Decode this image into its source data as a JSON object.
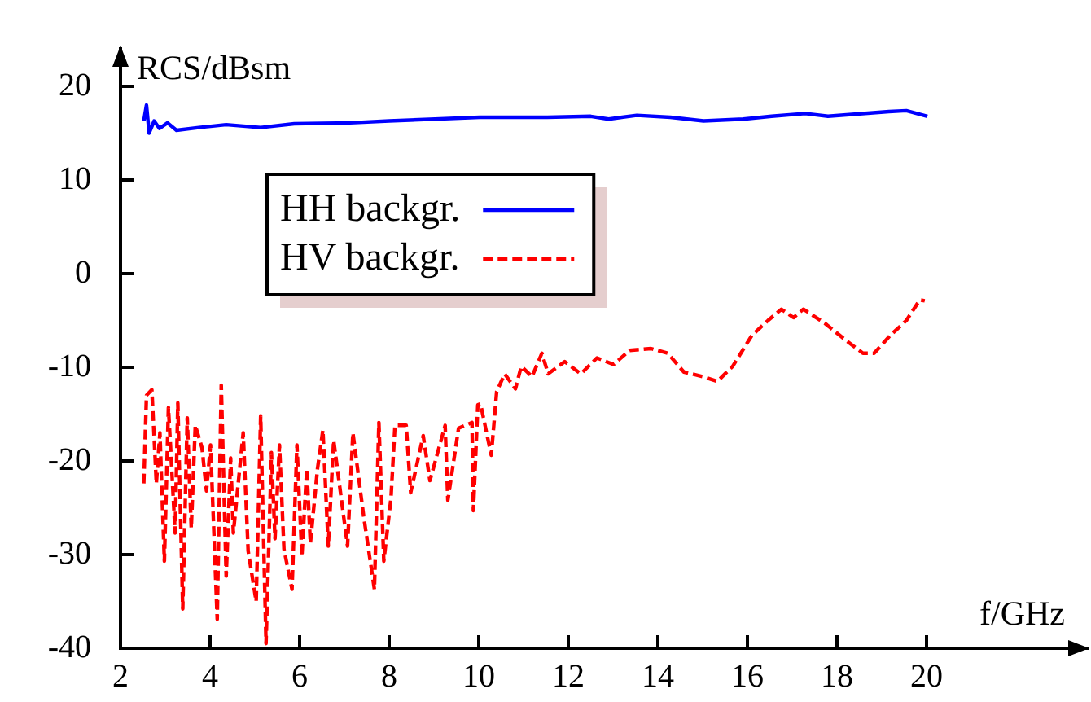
{
  "chart_data": {
    "type": "line",
    "xlabel": "f/GHz",
    "ylabel": "RCS/dBsm",
    "xlim": [
      2,
      23.6
    ],
    "ylim": [
      -40,
      24
    ],
    "xticks": [
      2,
      4,
      6,
      8,
      10,
      12,
      14,
      16,
      18,
      20
    ],
    "yticks": [
      -40,
      -30,
      -20,
      -10,
      0,
      10,
      20
    ],
    "grid": false,
    "legend": "top left",
    "marker": "none",
    "series": [
      {
        "name": "HH backgr.",
        "color": "#0000ff",
        "line_style": "solid",
        "x": [
          2.52,
          2.58,
          2.64,
          2.75,
          2.87,
          3.05,
          3.25,
          3.75,
          4.36,
          5.13,
          5.88,
          7.13,
          8.0,
          9.02,
          10.02,
          11.53,
          12.5,
          12.9,
          13.53,
          14.28,
          15.02,
          15.91,
          16.54,
          17.29,
          17.8,
          19.16,
          19.55,
          20.02
        ],
        "values": [
          16.3,
          18.0,
          15.0,
          16.3,
          15.5,
          16.1,
          15.3,
          15.6,
          15.9,
          15.6,
          16.0,
          16.1,
          16.3,
          16.5,
          16.7,
          16.7,
          16.8,
          16.5,
          16.9,
          16.7,
          16.3,
          16.5,
          16.8,
          17.1,
          16.8,
          17.3,
          17.4,
          16.8
        ]
      },
      {
        "name": "HV backgr.",
        "color": "#ff0000",
        "line_style": "dashed",
        "x": [
          2.52,
          2.58,
          2.7,
          2.8,
          2.88,
          2.98,
          3.07,
          3.22,
          3.28,
          3.39,
          3.49,
          3.58,
          3.67,
          3.82,
          3.92,
          4.01,
          4.16,
          4.25,
          4.36,
          4.46,
          4.52,
          4.74,
          4.85,
          5.03,
          5.13,
          5.25,
          5.37,
          5.45,
          5.55,
          5.65,
          5.83,
          5.94,
          6.05,
          6.16,
          6.24,
          6.4,
          6.52,
          6.64,
          6.76,
          7.07,
          7.19,
          7.43,
          7.67,
          7.77,
          7.88,
          8.04,
          8.13,
          8.38,
          8.48,
          8.76,
          8.91,
          9.25,
          9.31,
          9.55,
          9.85,
          9.88,
          9.98,
          10.04,
          10.28,
          10.4,
          10.58,
          10.82,
          10.95,
          11.19,
          11.41,
          11.55,
          11.92,
          12.28,
          12.64,
          13.01,
          13.37,
          13.85,
          14.22,
          14.58,
          15.01,
          15.33,
          15.67,
          16.1,
          16.46,
          16.76,
          17.03,
          17.25,
          17.73,
          18.22,
          18.58,
          18.83,
          19.19,
          19.55,
          19.85,
          19.96
        ],
        "values": [
          -22.4,
          -13.0,
          -12.4,
          -22.4,
          -17.0,
          -30.7,
          -14.3,
          -27.7,
          -13.8,
          -35.8,
          -15.4,
          -27.2,
          -16.2,
          -18.6,
          -23.2,
          -18.3,
          -36.9,
          -11.9,
          -32.3,
          -19.7,
          -27.7,
          -17.0,
          -29.6,
          -35.0,
          -15.2,
          -39.5,
          -19.1,
          -28.3,
          -18.3,
          -29.4,
          -33.7,
          -18.3,
          -30.2,
          -20.8,
          -28.8,
          -20.8,
          -16.7,
          -29.1,
          -17.8,
          -29.1,
          -17.0,
          -25.9,
          -33.7,
          -15.9,
          -30.7,
          -24.0,
          -16.2,
          -16.2,
          -23.4,
          -17.3,
          -22.1,
          -16.2,
          -24.2,
          -16.5,
          -15.9,
          -25.3,
          -14.0,
          -13.9,
          -19.4,
          -12.6,
          -10.7,
          -12.3,
          -9.9,
          -11.0,
          -8.5,
          -10.7,
          -9.4,
          -10.7,
          -9.0,
          -9.7,
          -8.2,
          -8.0,
          -8.5,
          -10.5,
          -11.0,
          -11.5,
          -9.9,
          -6.6,
          -5.0,
          -3.8,
          -4.7,
          -3.8,
          -5.3,
          -7.2,
          -8.5,
          -8.5,
          -6.6,
          -5.0,
          -2.8,
          -2.9
        ]
      }
    ]
  }
}
